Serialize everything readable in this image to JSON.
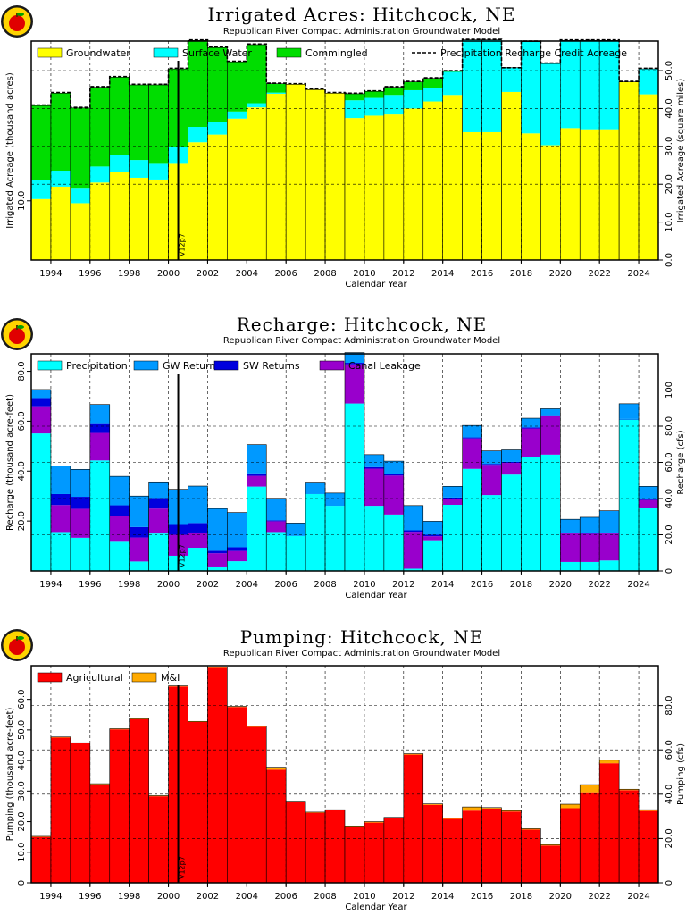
{
  "chart_data": [
    {
      "type": "bar",
      "stacked": true,
      "title": "Irrigated Acres: Hitchcock, NE",
      "subtitle": "Republican River Compact Administration Groundwater Model",
      "xlabel": "Calendar Year",
      "ylabel": "Irrigated Acreage (thousand acres)",
      "y2label": "Irrigated Acreage (square miles)",
      "ylim": [
        0,
        37
      ],
      "y2lim": [
        0,
        57.8
      ],
      "yticks": [
        "10.0"
      ],
      "y2ticks": [
        "0.0",
        "10.0",
        "20.0",
        "30.0",
        "40.0",
        "50.0"
      ],
      "xticks": [
        "1994",
        "1996",
        "1998",
        "2000",
        "2002",
        "2004",
        "2006",
        "2008",
        "2010",
        "2012",
        "2014",
        "2016",
        "2018",
        "2020",
        "2022",
        "2024"
      ],
      "xlim": [
        1993,
        2025
      ],
      "x": [
        1993,
        1994,
        1995,
        1996,
        1997,
        1998,
        1999,
        2000,
        2001,
        2002,
        2003,
        2004,
        2005,
        2006,
        2007,
        2008,
        2009,
        2010,
        2011,
        2012,
        2013,
        2014,
        2015,
        2016,
        2017,
        2018,
        2019,
        2020,
        2021,
        2022,
        2023,
        2024
      ],
      "grid": true,
      "legend_position": "top",
      "series": [
        {
          "name": "Groundwater",
          "color": "#ffff00",
          "values": [
            10.3,
            12.4,
            9.6,
            13.1,
            14.8,
            13.9,
            13.6,
            16.4,
            19.9,
            21.2,
            23.9,
            25.8,
            28.1,
            29.7,
            28.8,
            28.2,
            24.0,
            24.4,
            24.6,
            25.6,
            26.8,
            27.9,
            21.6,
            21.6,
            28.4,
            21.4,
            19.4,
            22.3,
            22.1,
            22.1,
            30.1,
            28.0
          ]
        },
        {
          "name": "Surface Water",
          "color": "#00ffff",
          "values": [
            3.2,
            2.7,
            2.6,
            2.7,
            3.0,
            3.0,
            2.8,
            2.7,
            2.6,
            2.2,
            1.2,
            0.7,
            0.2,
            0.0,
            0.0,
            0.0,
            3.0,
            3.0,
            3.3,
            3.1,
            2.3,
            3.9,
            15.6,
            15.6,
            4.1,
            15.5,
            13.8,
            14.8,
            15.0,
            15.0,
            0.0,
            4.3
          ]
        },
        {
          "name": "Commingled",
          "color": "#00dd00",
          "values": [
            12.6,
            13.1,
            13.5,
            13.4,
            13.1,
            12.7,
            13.2,
            13.2,
            14.6,
            12.5,
            8.4,
            9.9,
            1.5,
            0.0,
            0.0,
            0.0,
            1.1,
            1.1,
            1.3,
            1.4,
            1.6,
            0.1,
            0.0,
            0.0,
            0.0,
            0.0,
            0.0,
            0.0,
            0.0,
            0.0,
            0.0,
            0.0
          ]
        },
        {
          "name": "Precipitation Recharge Credit Acreage",
          "color": "#000000",
          "style": "dashed",
          "values": [
            26.2,
            28.3,
            25.8,
            29.3,
            31.0,
            29.7,
            29.7,
            32.4,
            37.2,
            36.0,
            33.6,
            36.5,
            29.9,
            29.8,
            28.9,
            28.3,
            28.2,
            28.6,
            29.3,
            30.2,
            30.8,
            32.0,
            37.3,
            37.3,
            32.5,
            37.0,
            33.3,
            37.2,
            37.2,
            37.2,
            30.2,
            32.4
          ]
        }
      ],
      "annotation": "V12p7",
      "annotation_x": 2000.5
    },
    {
      "type": "bar",
      "stacked": true,
      "title": "Recharge: Hitchcock, NE",
      "subtitle": "Republican River Compact Administration Groundwater Model",
      "xlabel": "Calendar Year",
      "ylabel": "Recharge (thousand acre-feet)",
      "y2label": "Recharge (cfs)",
      "ylim": [
        0,
        87
      ],
      "y2lim": [
        0,
        120
      ],
      "yticks": [
        "20.0",
        "40.0",
        "60.0",
        "80.0"
      ],
      "y2ticks": [
        "0",
        "20.0",
        "40.0",
        "60.0",
        "80.0",
        "100"
      ],
      "xticks": [
        "1994",
        "1996",
        "1998",
        "2000",
        "2002",
        "2004",
        "2006",
        "2008",
        "2010",
        "2012",
        "2014",
        "2016",
        "2018",
        "2020",
        "2022",
        "2024"
      ],
      "xlim": [
        1993,
        2025
      ],
      "x": [
        1993,
        1994,
        1995,
        1996,
        1997,
        1998,
        1999,
        2000,
        2001,
        2002,
        2003,
        2004,
        2005,
        2006,
        2007,
        2008,
        2009,
        2010,
        2011,
        2012,
        2013,
        2014,
        2015,
        2016,
        2017,
        2018,
        2019,
        2020,
        2021,
        2022,
        2023,
        2024
      ],
      "grid": true,
      "legend_position": "top",
      "series": [
        {
          "name": "Precipitation",
          "color": "#00ffff",
          "values": [
            55.1,
            15.6,
            13.3,
            44.3,
            11.7,
            3.8,
            15.0,
            6.1,
            9.3,
            1.8,
            3.9,
            33.8,
            15.6,
            14.0,
            30.8,
            26.1,
            67.1,
            26.1,
            22.6,
            0.9,
            12.3,
            26.5,
            40.9,
            30.4,
            38.6,
            45.8,
            46.6,
            3.6,
            3.6,
            4.2,
            60.7,
            25.2
          ]
        },
        {
          "name": "Canal Leakage",
          "color": "#9900cc",
          "values": [
            10.9,
            10.8,
            11.6,
            11.0,
            10.3,
            9.6,
            10.0,
            8.4,
            6.1,
            5.3,
            4.1,
            4.3,
            4.3,
            0.0,
            0.0,
            0.0,
            15.7,
            14.9,
            15.6,
            14.8,
            1.6,
            2.5,
            12.2,
            12.1,
            4.7,
            11.3,
            15.4,
            11.4,
            11.3,
            10.8,
            0.0,
            3.2
          ]
        },
        {
          "name": "SW Returns",
          "color": "#0000dd",
          "values": [
            3.3,
            4.4,
            4.8,
            3.9,
            4.3,
            4.2,
            4.2,
            4.3,
            3.8,
            1.0,
            1.5,
            1.0,
            0.4,
            0.0,
            0.0,
            0.0,
            0.6,
            0.6,
            0.6,
            0.6,
            0.6,
            0.4,
            0.4,
            0.4,
            0.4,
            0.4,
            0.4,
            0.4,
            0.4,
            0.4,
            0.2,
            0.6
          ]
        },
        {
          "name": "GW Returns",
          "color": "#0099ff",
          "values": [
            3.4,
            11.3,
            11.0,
            7.5,
            11.6,
            12.4,
            6.5,
            13.9,
            14.8,
            16.9,
            13.9,
            11.5,
            8.8,
            5.2,
            4.8,
            5.1,
            4.1,
            5.0,
            5.2,
            9.9,
            5.4,
            4.5,
            4.8,
            5.2,
            4.8,
            3.7,
            2.6,
            5.3,
            6.2,
            8.7,
            6.1,
            4.9
          ]
        }
      ],
      "annotation": "V12p7",
      "annotation_x": 2000.5
    },
    {
      "type": "bar",
      "stacked": true,
      "title": "Pumping: Hitchcock, NE",
      "subtitle": "Republican River Compact Administration Groundwater Model",
      "xlabel": "Calendar Year",
      "ylabel": "Pumping (thousand acre-feet)",
      "y2label": "Pumping (cfs)",
      "ylim": [
        0,
        71
      ],
      "y2lim": [
        0,
        98
      ],
      "yticks": [
        "0",
        "10.0",
        "20.0",
        "30.0",
        "40.0",
        "50.0",
        "60.0"
      ],
      "y2ticks": [
        "0",
        "20.0",
        "40.0",
        "60.0",
        "80.0"
      ],
      "xticks": [
        "1994",
        "1996",
        "1998",
        "2000",
        "2002",
        "2004",
        "2006",
        "2008",
        "2010",
        "2012",
        "2014",
        "2016",
        "2018",
        "2020",
        "2022",
        "2024"
      ],
      "xlim": [
        1993,
        2025
      ],
      "x": [
        1993,
        1994,
        1995,
        1996,
        1997,
        1998,
        1999,
        2000,
        2001,
        2002,
        2003,
        2004,
        2005,
        2006,
        2007,
        2008,
        2009,
        2010,
        2011,
        2012,
        2013,
        2014,
        2015,
        2016,
        2017,
        2018,
        2019,
        2020,
        2021,
        2022,
        2023,
        2024
      ],
      "grid": true,
      "legend_position": "top",
      "series": [
        {
          "name": "Agricultural",
          "color": "#ff0000",
          "values": [
            15.0,
            47.5,
            45.6,
            32.2,
            50.2,
            53.5,
            28.3,
            64.2,
            52.6,
            70.3,
            57.5,
            51.0,
            37.0,
            26.5,
            22.9,
            23.7,
            18.3,
            19.7,
            21.1,
            41.9,
            25.5,
            20.9,
            23.6,
            24.3,
            23.3,
            17.4,
            12.2,
            24.4,
            29.6,
            39.1,
            30.3,
            23.5
          ]
        },
        {
          "name": "M&I",
          "color": "#ffaa00",
          "values": [
            0.2,
            0.2,
            0.2,
            0.2,
            0.2,
            0.2,
            0.2,
            0.2,
            0.2,
            0.2,
            0.2,
            0.2,
            0.8,
            0.2,
            0.2,
            0.2,
            0.3,
            0.3,
            0.3,
            0.3,
            0.3,
            0.3,
            1.2,
            0.3,
            0.3,
            0.3,
            0.3,
            1.3,
            2.5,
            1.0,
            0.3,
            0.4
          ]
        }
      ],
      "annotation": "V12p7",
      "annotation_x": 2000.5
    }
  ]
}
